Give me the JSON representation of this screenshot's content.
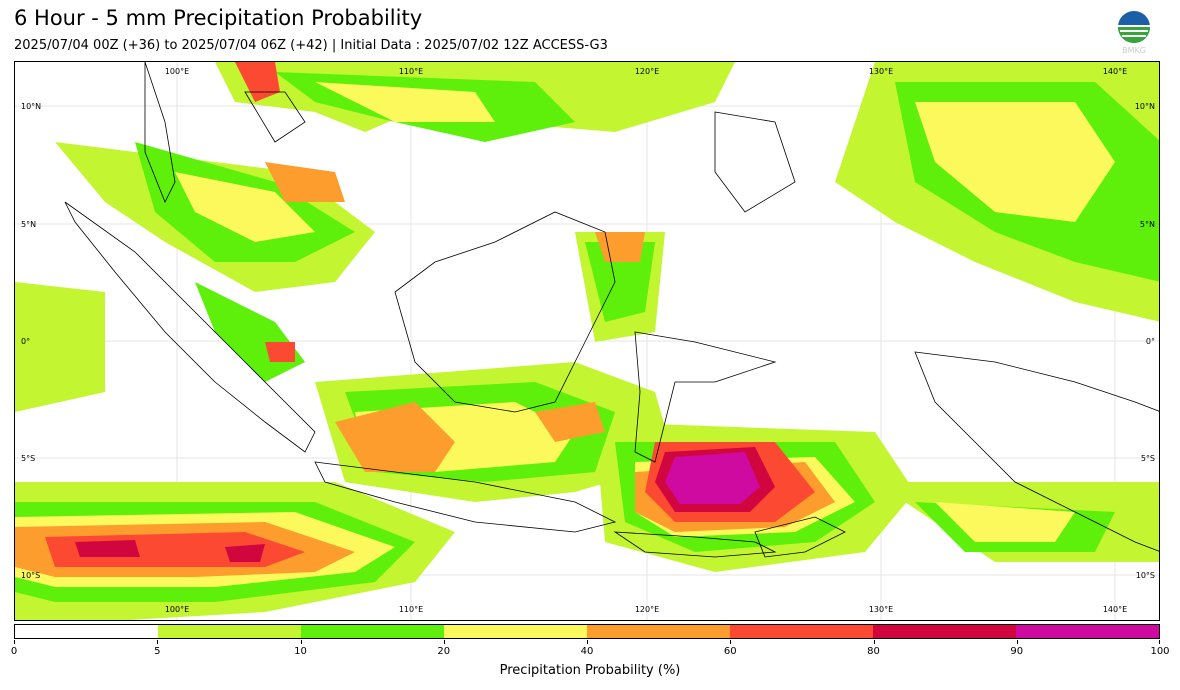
{
  "title": "6 Hour - 5 mm Precipitation Probability",
  "subtitle": "2025/07/04 00Z (+36) to 2025/07/04 06Z (+42) | Initial Data : 2025/07/02 12Z ACCESS-G3",
  "logo": {
    "name": "bmkg-logo",
    "text": "BMKG"
  },
  "map": {
    "lon_top_labels": [
      "100°E",
      "110°E",
      "120°E",
      "130°E",
      "140°E"
    ],
    "lon_bottom_labels": [
      "100°E",
      "110°E",
      "120°E",
      "130°E",
      "140°E"
    ],
    "lat_left_labels": [
      "10°N",
      "5°N",
      "0°",
      "5°S",
      "10°S"
    ],
    "lat_right_labels": [
      "10°N",
      "5°N",
      "0°",
      "5°S",
      "10°S"
    ]
  },
  "colorbar": {
    "label": "Precipitation Probability (%)",
    "ticks": [
      "0",
      "5",
      "10",
      "20",
      "40",
      "60",
      "80",
      "90",
      "100"
    ],
    "colors": [
      "#ffffff",
      "#c3f531",
      "#5ef00a",
      "#fcf95c",
      "#fd9d2e",
      "#fb4a31",
      "#d1063e",
      "#cf0aa0"
    ]
  }
}
